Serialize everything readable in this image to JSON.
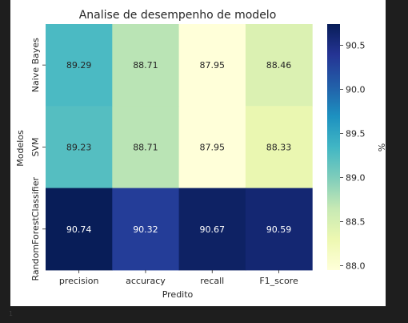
{
  "chart_data": {
    "type": "heatmap",
    "title": "Analise de desempenho de modelo",
    "xlabel": "Predito",
    "ylabel": "Modelos",
    "x_categories": [
      "precision",
      "accuracy",
      "recall",
      "F1_score"
    ],
    "y_categories": [
      "Naive Bayes",
      "SVM",
      "RandomForestClassifier"
    ],
    "values": [
      [
        89.29,
        88.71,
        87.95,
        88.46
      ],
      [
        89.23,
        88.71,
        87.95,
        88.33
      ],
      [
        90.74,
        90.32,
        90.67,
        90.59
      ]
    ],
    "cell_labels": [
      [
        "89.29",
        "88.71",
        "87.95",
        "88.46"
      ],
      [
        "89.23",
        "88.71",
        "87.95",
        "88.33"
      ],
      [
        "90.74",
        "90.32",
        "90.67",
        "90.59"
      ]
    ],
    "colormap": "YlGnBu",
    "vmin": 87.95,
    "vmax": 90.74,
    "colorbar": {
      "label": "%",
      "ticks": [
        "88.0",
        "88.5",
        "89.0",
        "89.5",
        "90.0",
        "90.5"
      ]
    },
    "colors": {
      "figure_background": "#ffffff",
      "page_background": "#1e1e1e",
      "text": "#262626"
    }
  },
  "footer_mark": "1"
}
